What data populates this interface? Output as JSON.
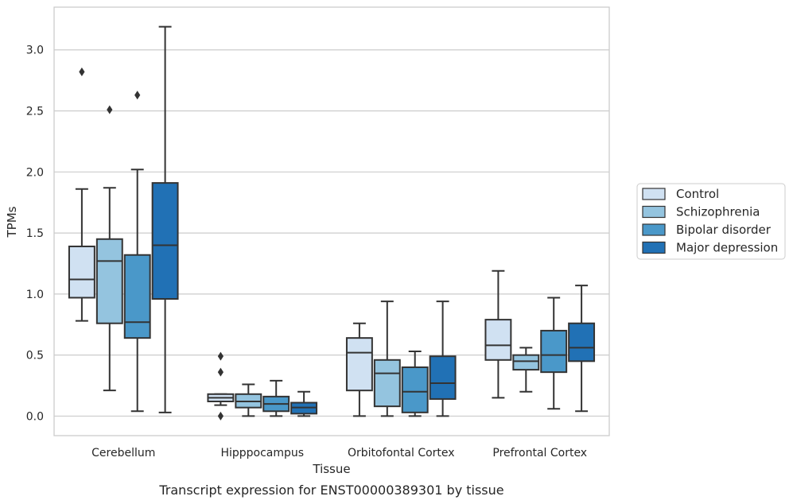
{
  "caption": "Transcript expression for ENST00000389301 by tissue",
  "chart_data": {
    "type": "box",
    "xlabel": "Tissue",
    "ylabel": "TPMs",
    "ylim": [
      -0.16,
      3.35
    ],
    "yticks": [
      "0.0",
      "0.5",
      "1.0",
      "1.5",
      "2.0",
      "2.5",
      "3.0"
    ],
    "grid": "horizontal",
    "legend_position": "right",
    "categories": [
      "Cerebellum",
      "Hipppocampus",
      "Orbitofontal Cortex",
      "Prefrontal Cortex"
    ],
    "series": [
      {
        "name": "Control",
        "color": "#d0e1f2",
        "boxes": [
          {
            "whislo": 0.78,
            "q1": 0.97,
            "med": 1.12,
            "q3": 1.39,
            "whishi": 1.86,
            "fliers": [
              2.82
            ]
          },
          {
            "whislo": 0.09,
            "q1": 0.12,
            "med": 0.15,
            "q3": 0.18,
            "whishi": 0.18,
            "fliers": [
              0.0,
              0.36,
              0.49
            ]
          },
          {
            "whislo": 0.0,
            "q1": 0.21,
            "med": 0.52,
            "q3": 0.64,
            "whishi": 0.76,
            "fliers": []
          },
          {
            "whislo": 0.15,
            "q1": 0.46,
            "med": 0.58,
            "q3": 0.79,
            "whishi": 1.19,
            "fliers": []
          }
        ]
      },
      {
        "name": "Schizophrenia",
        "color": "#94c4df",
        "boxes": [
          {
            "whislo": 0.21,
            "q1": 0.76,
            "med": 1.27,
            "q3": 1.45,
            "whishi": 1.87,
            "fliers": [
              2.51
            ]
          },
          {
            "whislo": 0.0,
            "q1": 0.07,
            "med": 0.12,
            "q3": 0.18,
            "whishi": 0.26,
            "fliers": []
          },
          {
            "whislo": 0.0,
            "q1": 0.08,
            "med": 0.35,
            "q3": 0.46,
            "whishi": 0.94,
            "fliers": []
          },
          {
            "whislo": 0.2,
            "q1": 0.38,
            "med": 0.45,
            "q3": 0.5,
            "whishi": 0.56,
            "fliers": []
          }
        ]
      },
      {
        "name": "Bipolar disorder",
        "color": "#4a98c9",
        "boxes": [
          {
            "whislo": 0.04,
            "q1": 0.64,
            "med": 0.77,
            "q3": 1.32,
            "whishi": 2.02,
            "fliers": [
              2.63
            ]
          },
          {
            "whislo": 0.0,
            "q1": 0.04,
            "med": 0.1,
            "q3": 0.16,
            "whishi": 0.29,
            "fliers": []
          },
          {
            "whislo": 0.0,
            "q1": 0.03,
            "med": 0.2,
            "q3": 0.4,
            "whishi": 0.53,
            "fliers": []
          },
          {
            "whislo": 0.06,
            "q1": 0.36,
            "med": 0.5,
            "q3": 0.7,
            "whishi": 0.97,
            "fliers": []
          }
        ]
      },
      {
        "name": "Major depression",
        "color": "#2171b5",
        "boxes": [
          {
            "whislo": 0.03,
            "q1": 0.96,
            "med": 1.4,
            "q3": 1.91,
            "whishi": 3.19,
            "fliers": []
          },
          {
            "whislo": 0.0,
            "q1": 0.02,
            "med": 0.07,
            "q3": 0.11,
            "whishi": 0.2,
            "fliers": []
          },
          {
            "whislo": 0.0,
            "q1": 0.14,
            "med": 0.27,
            "q3": 0.49,
            "whishi": 0.94,
            "fliers": []
          },
          {
            "whislo": 0.04,
            "q1": 0.45,
            "med": 0.56,
            "q3": 0.76,
            "whishi": 1.07,
            "fliers": []
          }
        ]
      }
    ]
  }
}
